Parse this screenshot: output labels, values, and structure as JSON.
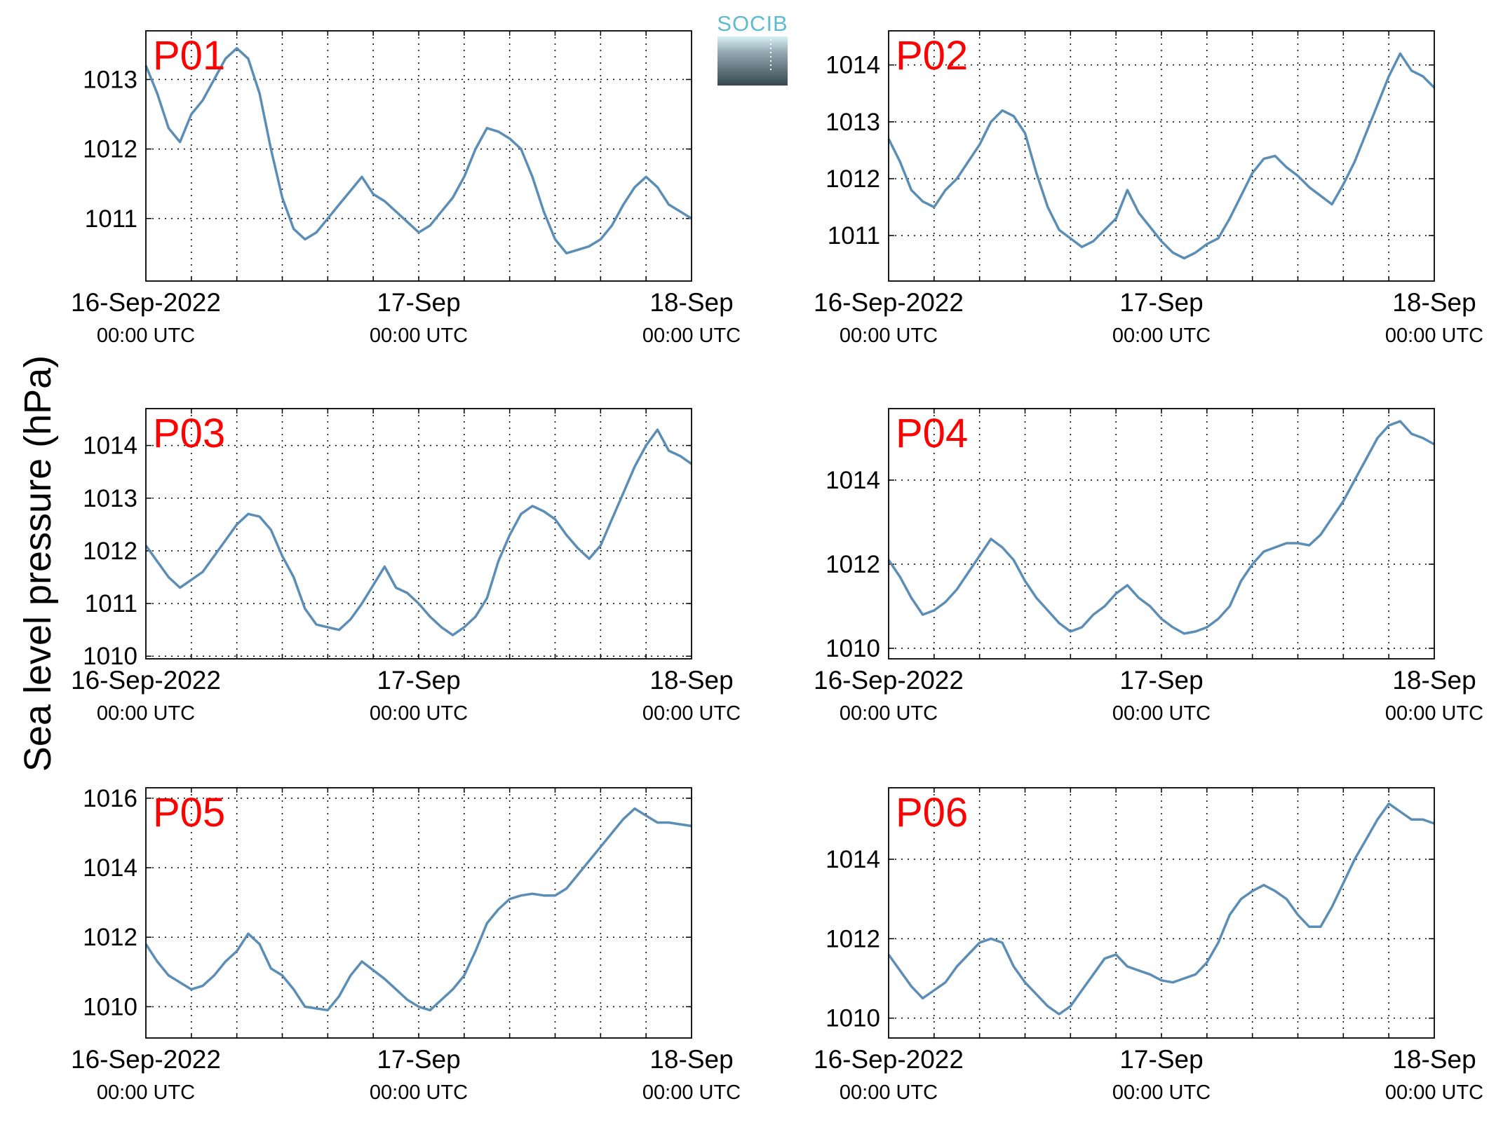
{
  "figure": {
    "ylabel": "Sea level pressure (hPa)",
    "logo_text": "SOCIB"
  },
  "chart_data": [
    {
      "type": "line",
      "label": "P01",
      "ylim": [
        1010.1,
        1013.7
      ],
      "yticks": [
        1011,
        1012,
        1013
      ],
      "xlim": [
        0,
        48
      ],
      "grid": true,
      "xtick_labels": [
        [
          "16-Sep-2022",
          "00:00 UTC"
        ],
        [
          "17-Sep",
          "00:00 UTC"
        ],
        [
          "18-Sep",
          "00:00 UTC"
        ]
      ],
      "x": [
        0,
        1,
        2,
        3,
        4,
        5,
        6,
        7,
        8,
        9,
        10,
        11,
        12,
        13,
        14,
        15,
        16,
        17,
        18,
        19,
        20,
        21,
        22,
        23,
        24,
        25,
        26,
        27,
        28,
        29,
        30,
        31,
        32,
        33,
        34,
        35,
        36,
        37,
        38,
        39,
        40,
        41,
        42,
        43,
        44,
        45,
        46,
        47,
        48
      ],
      "values": [
        1013.2,
        1012.8,
        1012.3,
        1012.1,
        1012.5,
        1012.7,
        1013.0,
        1013.3,
        1013.45,
        1013.3,
        1012.8,
        1012.0,
        1011.3,
        1010.85,
        1010.7,
        1010.8,
        1011.0,
        1011.2,
        1011.4,
        1011.6,
        1011.35,
        1011.25,
        1011.1,
        1010.95,
        1010.8,
        1010.9,
        1011.1,
        1011.3,
        1011.6,
        1012.0,
        1012.3,
        1012.25,
        1012.15,
        1012.0,
        1011.6,
        1011.1,
        1010.7,
        1010.5,
        1010.55,
        1010.6,
        1010.7,
        1010.9,
        1011.2,
        1011.45,
        1011.6,
        1011.45,
        1011.2,
        1011.1,
        1011.0
      ]
    },
    {
      "type": "line",
      "label": "P02",
      "ylim": [
        1010.2,
        1014.6
      ],
      "yticks": [
        1011,
        1012,
        1013,
        1014
      ],
      "xlim": [
        0,
        48
      ],
      "grid": true,
      "xtick_labels": [
        [
          "16-Sep-2022",
          "00:00 UTC"
        ],
        [
          "17-Sep",
          "00:00 UTC"
        ],
        [
          "18-Sep",
          "00:00 UTC"
        ]
      ],
      "x": [
        0,
        1,
        2,
        3,
        4,
        5,
        6,
        7,
        8,
        9,
        10,
        11,
        12,
        13,
        14,
        15,
        16,
        17,
        18,
        19,
        20,
        21,
        22,
        23,
        24,
        25,
        26,
        27,
        28,
        29,
        30,
        31,
        32,
        33,
        34,
        35,
        36,
        37,
        38,
        39,
        40,
        41,
        42,
        43,
        44,
        45,
        46,
        47,
        48
      ],
      "values": [
        1012.7,
        1012.3,
        1011.8,
        1011.6,
        1011.5,
        1011.8,
        1012.0,
        1012.3,
        1012.6,
        1013.0,
        1013.2,
        1013.1,
        1012.8,
        1012.1,
        1011.5,
        1011.1,
        1010.95,
        1010.8,
        1010.9,
        1011.1,
        1011.3,
        1011.8,
        1011.4,
        1011.15,
        1010.9,
        1010.7,
        1010.6,
        1010.7,
        1010.85,
        1010.95,
        1011.3,
        1011.7,
        1012.1,
        1012.35,
        1012.4,
        1012.2,
        1012.05,
        1011.85,
        1011.7,
        1011.55,
        1011.9,
        1012.3,
        1012.8,
        1013.3,
        1013.8,
        1014.2,
        1013.9,
        1013.8,
        1013.6
      ]
    },
    {
      "type": "line",
      "label": "P03",
      "ylim": [
        1009.95,
        1014.7
      ],
      "yticks": [
        1010,
        1011,
        1012,
        1013,
        1014
      ],
      "xlim": [
        0,
        48
      ],
      "grid": true,
      "xtick_labels": [
        [
          "16-Sep-2022",
          "00:00 UTC"
        ],
        [
          "17-Sep",
          "00:00 UTC"
        ],
        [
          "18-Sep",
          "00:00 UTC"
        ]
      ],
      "x": [
        0,
        1,
        2,
        3,
        4,
        5,
        6,
        7,
        8,
        9,
        10,
        11,
        12,
        13,
        14,
        15,
        16,
        17,
        18,
        19,
        20,
        21,
        22,
        23,
        24,
        25,
        26,
        27,
        28,
        29,
        30,
        31,
        32,
        33,
        34,
        35,
        36,
        37,
        38,
        39,
        40,
        41,
        42,
        43,
        44,
        45,
        46,
        47,
        48
      ],
      "values": [
        1012.1,
        1011.8,
        1011.5,
        1011.3,
        1011.45,
        1011.6,
        1011.9,
        1012.2,
        1012.5,
        1012.7,
        1012.65,
        1012.4,
        1011.9,
        1011.5,
        1010.9,
        1010.6,
        1010.55,
        1010.5,
        1010.7,
        1011.0,
        1011.35,
        1011.7,
        1011.3,
        1011.2,
        1011.0,
        1010.75,
        1010.55,
        1010.4,
        1010.55,
        1010.75,
        1011.1,
        1011.8,
        1012.3,
        1012.7,
        1012.85,
        1012.75,
        1012.6,
        1012.3,
        1012.05,
        1011.85,
        1012.1,
        1012.6,
        1013.1,
        1013.6,
        1014.0,
        1014.3,
        1013.9,
        1013.8,
        1013.65
      ]
    },
    {
      "type": "line",
      "label": "P04",
      "ylim": [
        1009.75,
        1015.7
      ],
      "yticks": [
        1010,
        1012,
        1014
      ],
      "xlim": [
        0,
        48
      ],
      "grid": true,
      "xtick_labels": [
        [
          "16-Sep-2022",
          "00:00 UTC"
        ],
        [
          "17-Sep",
          "00:00 UTC"
        ],
        [
          "18-Sep",
          "00:00 UTC"
        ]
      ],
      "x": [
        0,
        1,
        2,
        3,
        4,
        5,
        6,
        7,
        8,
        9,
        10,
        11,
        12,
        13,
        14,
        15,
        16,
        17,
        18,
        19,
        20,
        21,
        22,
        23,
        24,
        25,
        26,
        27,
        28,
        29,
        30,
        31,
        32,
        33,
        34,
        35,
        36,
        37,
        38,
        39,
        40,
        41,
        42,
        43,
        44,
        45,
        46,
        47,
        48
      ],
      "values": [
        1012.1,
        1011.7,
        1011.2,
        1010.8,
        1010.9,
        1011.1,
        1011.4,
        1011.8,
        1012.2,
        1012.6,
        1012.4,
        1012.1,
        1011.6,
        1011.2,
        1010.9,
        1010.6,
        1010.4,
        1010.5,
        1010.8,
        1011.0,
        1011.3,
        1011.5,
        1011.2,
        1011.0,
        1010.7,
        1010.5,
        1010.35,
        1010.4,
        1010.5,
        1010.7,
        1011.0,
        1011.6,
        1012.0,
        1012.3,
        1012.4,
        1012.5,
        1012.5,
        1012.45,
        1012.7,
        1013.1,
        1013.5,
        1014.0,
        1014.5,
        1015.0,
        1015.3,
        1015.4,
        1015.1,
        1015.0,
        1014.85
      ]
    },
    {
      "type": "line",
      "label": "P05",
      "ylim": [
        1009.1,
        1016.3
      ],
      "yticks": [
        1010,
        1012,
        1014,
        1016
      ],
      "xlim": [
        0,
        48
      ],
      "grid": true,
      "xtick_labels": [
        [
          "16-Sep-2022",
          "00:00 UTC"
        ],
        [
          "17-Sep",
          "00:00 UTC"
        ],
        [
          "18-Sep",
          "00:00 UTC"
        ]
      ],
      "x": [
        0,
        1,
        2,
        3,
        4,
        5,
        6,
        7,
        8,
        9,
        10,
        11,
        12,
        13,
        14,
        15,
        16,
        17,
        18,
        19,
        20,
        21,
        22,
        23,
        24,
        25,
        26,
        27,
        28,
        29,
        30,
        31,
        32,
        33,
        34,
        35,
        36,
        37,
        38,
        39,
        40,
        41,
        42,
        43,
        44,
        45,
        46,
        47,
        48
      ],
      "values": [
        1011.8,
        1011.3,
        1010.9,
        1010.7,
        1010.5,
        1010.6,
        1010.9,
        1011.3,
        1011.6,
        1012.1,
        1011.8,
        1011.1,
        1010.9,
        1010.5,
        1010.0,
        1009.95,
        1009.9,
        1010.3,
        1010.9,
        1011.3,
        1011.05,
        1010.8,
        1010.5,
        1010.2,
        1010.0,
        1009.9,
        1010.2,
        1010.5,
        1010.9,
        1011.6,
        1012.4,
        1012.8,
        1013.1,
        1013.2,
        1013.25,
        1013.2,
        1013.2,
        1013.4,
        1013.8,
        1014.2,
        1014.6,
        1015.0,
        1015.4,
        1015.7,
        1015.5,
        1015.3,
        1015.3,
        1015.25,
        1015.2
      ]
    },
    {
      "type": "line",
      "label": "P06",
      "ylim": [
        1009.5,
        1015.8
      ],
      "yticks": [
        1010,
        1012,
        1014
      ],
      "xlim": [
        0,
        48
      ],
      "grid": true,
      "xtick_labels": [
        [
          "16-Sep-2022",
          "00:00 UTC"
        ],
        [
          "17-Sep",
          "00:00 UTC"
        ],
        [
          "18-Sep",
          "00:00 UTC"
        ]
      ],
      "x": [
        0,
        1,
        2,
        3,
        4,
        5,
        6,
        7,
        8,
        9,
        10,
        11,
        12,
        13,
        14,
        15,
        16,
        17,
        18,
        19,
        20,
        21,
        22,
        23,
        24,
        25,
        26,
        27,
        28,
        29,
        30,
        31,
        32,
        33,
        34,
        35,
        36,
        37,
        38,
        39,
        40,
        41,
        42,
        43,
        44,
        45,
        46,
        47,
        48
      ],
      "values": [
        1011.6,
        1011.2,
        1010.8,
        1010.5,
        1010.7,
        1010.9,
        1011.3,
        1011.6,
        1011.9,
        1012.0,
        1011.9,
        1011.3,
        1010.9,
        1010.6,
        1010.3,
        1010.1,
        1010.3,
        1010.7,
        1011.1,
        1011.5,
        1011.6,
        1011.3,
        1011.2,
        1011.1,
        1010.95,
        1010.9,
        1011.0,
        1011.1,
        1011.4,
        1011.9,
        1012.6,
        1013.0,
        1013.2,
        1013.35,
        1013.2,
        1013.0,
        1012.6,
        1012.3,
        1012.3,
        1012.8,
        1013.4,
        1014.0,
        1014.5,
        1015.0,
        1015.4,
        1015.2,
        1015.0,
        1015.0,
        1014.9
      ]
    }
  ]
}
